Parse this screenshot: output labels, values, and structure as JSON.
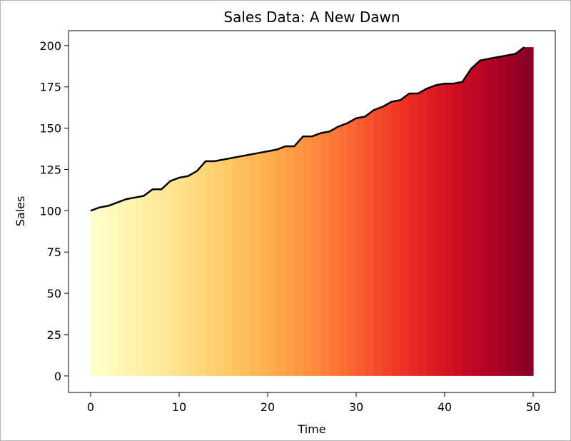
{
  "chart_data": {
    "type": "area",
    "title": "Sales Data: A New Dawn",
    "xlabel": "Time",
    "ylabel": "Sales",
    "xlim": [
      -2.5,
      52.5
    ],
    "ylim": [
      -10,
      209
    ],
    "xticks": [
      0,
      10,
      20,
      30,
      40,
      50
    ],
    "yticks": [
      0,
      25,
      50,
      75,
      100,
      125,
      150,
      175,
      200
    ],
    "grid": false,
    "legend": "none",
    "colormap": "YlOrRd",
    "colormap_stops": [
      "#ffffcc",
      "#fff0a8",
      "#fee087",
      "#fec965",
      "#feab4b",
      "#fd893c",
      "#fa5c2e",
      "#ec3023",
      "#d31121",
      "#af0225",
      "#800026"
    ],
    "line_color": "#000000",
    "series": [
      {
        "x": [
          0,
          1,
          2,
          3,
          4,
          5,
          6,
          7,
          8,
          9,
          10,
          11,
          12,
          13,
          14,
          15,
          16,
          17,
          18,
          19,
          20,
          21,
          22,
          23,
          24,
          25,
          26,
          27,
          28,
          29,
          30,
          31,
          32,
          33,
          34,
          35,
          36,
          37,
          38,
          39,
          40,
          41,
          42,
          43,
          44,
          45,
          46,
          47,
          48,
          49,
          50
        ],
        "values": [
          100,
          102,
          103,
          105,
          107,
          108,
          109,
          113,
          113,
          118,
          120,
          121,
          124,
          130,
          130,
          131,
          132,
          133,
          134,
          135,
          136,
          137,
          139,
          139,
          145,
          145,
          147,
          148,
          151,
          153,
          156,
          157,
          161,
          163,
          166,
          167,
          171,
          171,
          174,
          176,
          177,
          177,
          178,
          186,
          191,
          192,
          193,
          194,
          195,
          199,
          199
        ],
        "line_end": 49
      }
    ]
  }
}
